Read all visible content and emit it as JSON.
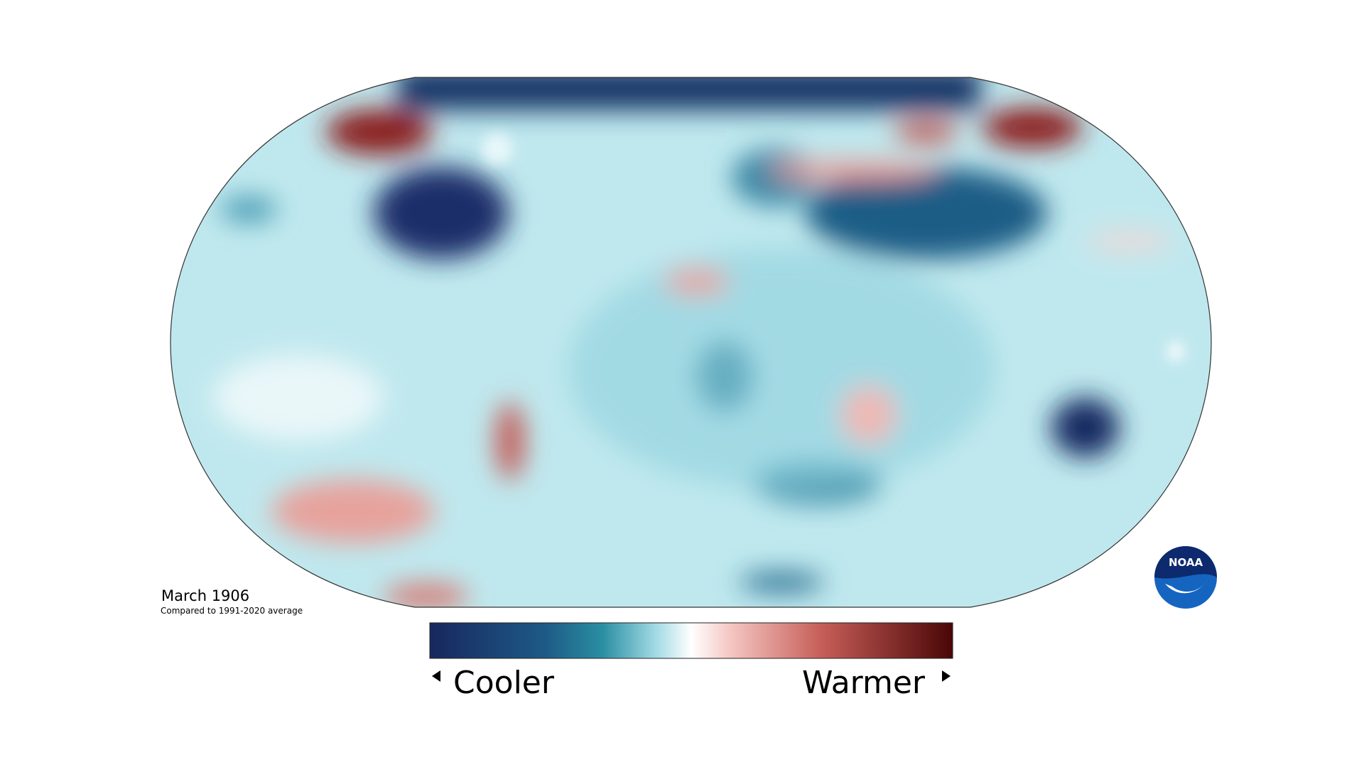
{
  "map": {
    "date": "March 1906",
    "subtitle": "Compared to 1991-2020 average"
  },
  "legend": {
    "low": "Cooler",
    "high": "Warmer"
  },
  "logo": {
    "text": "NOAA"
  }
}
